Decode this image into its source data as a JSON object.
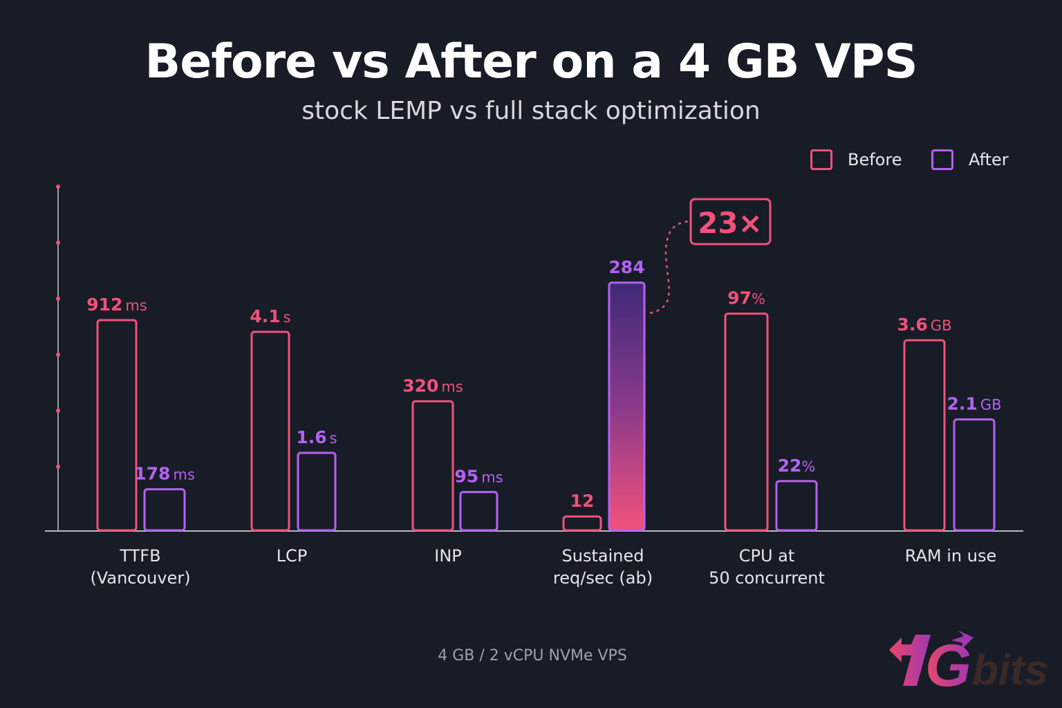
{
  "chart_data": {
    "type": "bar",
    "title": "Before vs After on a 4 GB VPS",
    "subtitle": "stock LEMP vs full stack optimization",
    "footnote": "4 GB / 2 vCPU NVMe VPS",
    "legend_placement": "top-right",
    "grid": false,
    "scale": "each category scaled independently; no y-axis tick labels",
    "series": [
      {
        "name": "Before",
        "color": "#f2517c",
        "values": [
          912,
          4.1,
          320,
          12,
          97,
          3.6
        ]
      },
      {
        "name": "After",
        "color": "#b462f2",
        "values": [
          178,
          1.6,
          95,
          284,
          22,
          2.1
        ]
      }
    ],
    "categories": [
      {
        "lines": [
          "TTFB",
          "(Vancouver)"
        ],
        "unit": "ms",
        "before_label": "912",
        "after_label": "178"
      },
      {
        "lines": [
          "LCP"
        ],
        "unit": "s",
        "before_label": "4.1",
        "after_label": "1.6"
      },
      {
        "lines": [
          "INP"
        ],
        "unit": "ms",
        "before_label": "320",
        "after_label": "95"
      },
      {
        "lines": [
          "Sustained",
          "req/sec (ab)"
        ],
        "unit": "",
        "before_label": "12",
        "after_label": "284"
      },
      {
        "lines": [
          "CPU at",
          "50 concurrent"
        ],
        "unit": "%",
        "before_label": "97",
        "after_label": "22"
      },
      {
        "lines": [
          "RAM in use"
        ],
        "unit": "GB",
        "before_label": "3.6",
        "after_label": "2.1"
      }
    ],
    "annotation": {
      "text": "23×",
      "target": "Sustained req/sec (ab) After"
    }
  },
  "legend": {
    "before": "Before",
    "after": "After"
  },
  "logo": {
    "text": "1Gbits",
    "colors": [
      "#e8486a",
      "#a038b0",
      "#3a2a26"
    ]
  }
}
